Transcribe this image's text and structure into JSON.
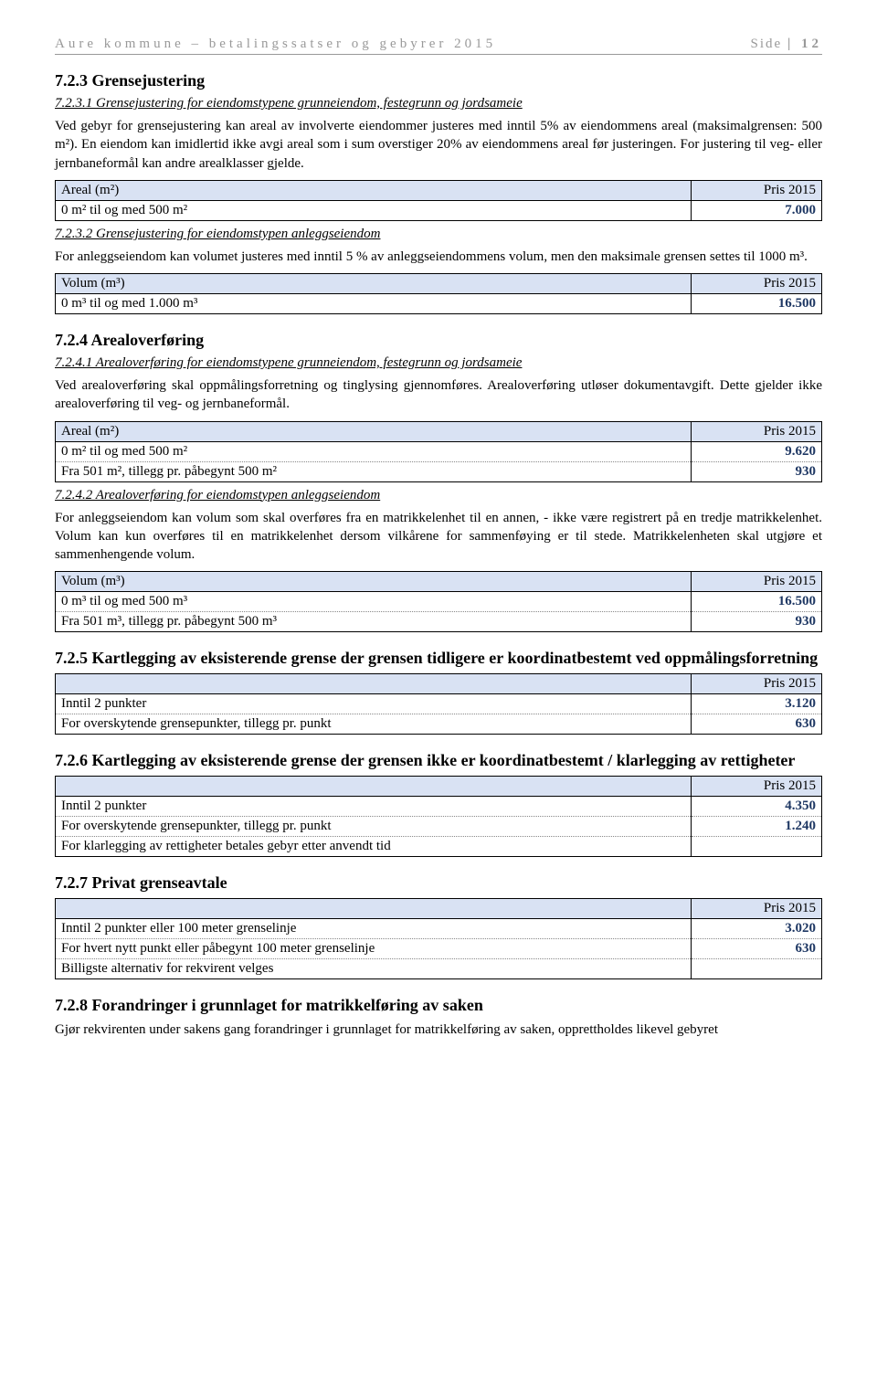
{
  "header": {
    "left": "Aure kommune – betalingssatser og gebyrer 2015",
    "right_label": "Side",
    "right_page": "| 12"
  },
  "s723": {
    "title": "7.2.3   Grensejustering",
    "s1": {
      "title": "7.2.3.1   Grensejustering for eiendomstypene grunneiendom, festegrunn og jordsameie",
      "p": "Ved gebyr for grensejustering kan areal av involverte eiendommer justeres med inntil 5% av eiendommens areal (maksimalgrensen: 500 m²). En eiendom kan imidlertid ikke avgi areal som i sum overstiger 20% av eiendommens areal før justeringen. For justering til veg- eller jernbaneformål kan andre arealklasser gjelde.",
      "col1": "Areal (m²)",
      "col2": "Pris 2015",
      "row1_label": "0 m² til og med 500 m²",
      "row1_price": "7.000"
    },
    "s2": {
      "title": "7.2.3.2   Grensejustering for eiendomstypen anleggseiendom",
      "p": "For anleggseiendom kan volumet justeres med inntil 5 % av anleggseiendommens volum, men den maksimale grensen settes til 1000 m³.",
      "col1": "Volum (m³)",
      "col2": "Pris 2015",
      "row1_label": "0 m³ til og med 1.000 m³",
      "row1_price": "16.500"
    }
  },
  "s724": {
    "title": "7.2.4   Arealoverføring",
    "s1": {
      "title": "7.2.4.1   Arealoverføring for eiendomstypene grunneiendom, festegrunn og jordsameie",
      "p": "Ved arealoverføring skal oppmålingsforretning og tinglysing gjennomføres. Arealoverføring utløser dokumentavgift. Dette gjelder ikke arealoverføring til veg- og jernbaneformål.",
      "col1": "Areal (m²)",
      "col2": "Pris 2015",
      "row1_label": "0 m² til og med 500 m²",
      "row1_price": "9.620",
      "row2_label": "Fra 501 m², tillegg pr. påbegynt 500 m²",
      "row2_price": "930"
    },
    "s2": {
      "title": "7.2.4.2   Arealoverføring for eiendomstypen anleggseiendom",
      "p": "For anleggseiendom kan volum som skal overføres fra en matrikkelenhet til en annen, - ikke være registrert på en tredje matrikkelenhet. Volum kan kun overføres til en matrikkelenhet dersom vilkårene for sammenføying er til stede. Matrikkelenheten skal utgjøre et sammenhengende volum.",
      "col1": "Volum (m³)",
      "col2": "Pris 2015",
      "row1_label": "0 m³ til og med 500 m³",
      "row1_price": "16.500",
      "row2_label": "Fra 501 m³, tillegg pr. påbegynt 500 m³",
      "row2_price": "930"
    }
  },
  "s725": {
    "title": "7.2.5   Kartlegging av eksisterende grense der grensen tidligere er koordinatbestemt ved oppmålingsforretning",
    "col2": "Pris 2015",
    "row1_label": "Inntil 2 punkter",
    "row1_price": "3.120",
    "row2_label": "For overskytende grensepunkter, tillegg pr. punkt",
    "row2_price": "630"
  },
  "s726": {
    "title": "7.2.6   Kartlegging av eksisterende grense der grensen ikke er koordinatbestemt / klarlegging av rettigheter",
    "col2": "Pris 2015",
    "row1_label": "Inntil 2 punkter",
    "row1_price": "4.350",
    "row2_label": "For overskytende grensepunkter, tillegg pr. punkt",
    "row2_price": "1.240",
    "row3_label": "For klarlegging av rettigheter betales gebyr etter anvendt tid"
  },
  "s727": {
    "title": "7.2.7   Privat grenseavtale",
    "col2": "Pris 2015",
    "row1_label": "Inntil 2 punkter eller 100 meter grenselinje",
    "row1_price": "3.020",
    "row2_label": "For hvert nytt punkt eller påbegynt 100 meter grenselinje",
    "row2_price": "630",
    "row3_label": "Billigste alternativ for rekvirent velges"
  },
  "s728": {
    "title": "7.2.8   Forandringer i grunnlaget for matrikkelføring av saken",
    "p": "Gjør rekvirenten under sakens gang forandringer i grunnlaget for matrikkelføring av saken, opprettholdes likevel gebyret"
  }
}
